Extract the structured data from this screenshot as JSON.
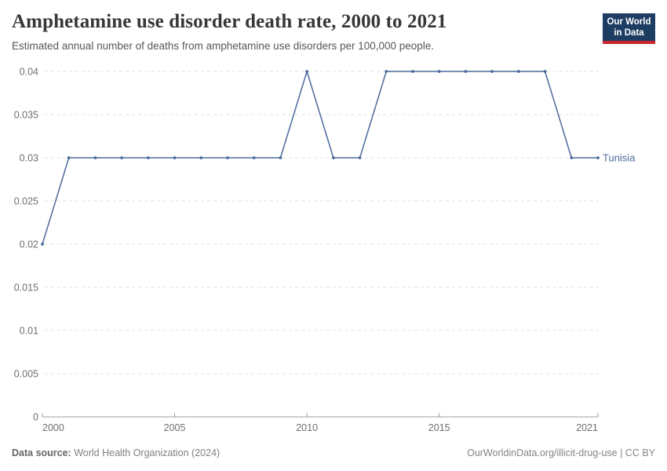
{
  "header": {
    "title": "Amphetamine use disorder death rate, 2000 to 2021",
    "subtitle": "Estimated annual number of deaths from amphetamine use disorders per 100,000 people.",
    "logo": {
      "line1": "Our World",
      "line2": "in Data"
    }
  },
  "chart_data": {
    "type": "line",
    "title": "Amphetamine use disorder death rate, 2000 to 2021",
    "x": [
      2000,
      2001,
      2002,
      2003,
      2004,
      2005,
      2006,
      2007,
      2008,
      2009,
      2010,
      2011,
      2012,
      2013,
      2014,
      2015,
      2016,
      2017,
      2018,
      2019,
      2020,
      2021
    ],
    "series": [
      {
        "name": "Tunisia",
        "values": [
          0.02,
          0.03,
          0.03,
          0.03,
          0.03,
          0.03,
          0.03,
          0.03,
          0.03,
          0.03,
          0.04,
          0.03,
          0.03,
          0.04,
          0.04,
          0.04,
          0.04,
          0.04,
          0.04,
          0.04,
          0.03,
          0.03
        ],
        "color": "#4C6A9C"
      }
    ],
    "ylim": [
      0,
      0.04
    ],
    "yticks": [
      0,
      0.005,
      0.01,
      0.015,
      0.02,
      0.025,
      0.03,
      0.035,
      0.04
    ],
    "ytick_labels": [
      "0",
      "0.005",
      "0.01",
      "0.015",
      "0.02",
      "0.025",
      "0.03",
      "0.035",
      "0.04"
    ],
    "xticks": [
      2000,
      2005,
      2010,
      2015,
      2021
    ],
    "xtick_labels": [
      "2000",
      "2005",
      "2010",
      "2015",
      "2021"
    ],
    "grid": "horizontal-dashed",
    "legend_position": "end-of-line-label",
    "entity_label": "Tunisia"
  },
  "footer": {
    "datasource_label": "Data source:",
    "datasource_value": " World Health Organization (2024)",
    "credit": "OurWorldinData.org/illicit-drug-use | CC BY"
  },
  "colors": {
    "line": "#4C6A9C",
    "grid": "#e0e0e0",
    "axis": "#9e9e9e",
    "tick_text": "#6e6e6e",
    "logo_bg": "#1d3d63",
    "logo_stripe": "#c9252b"
  }
}
